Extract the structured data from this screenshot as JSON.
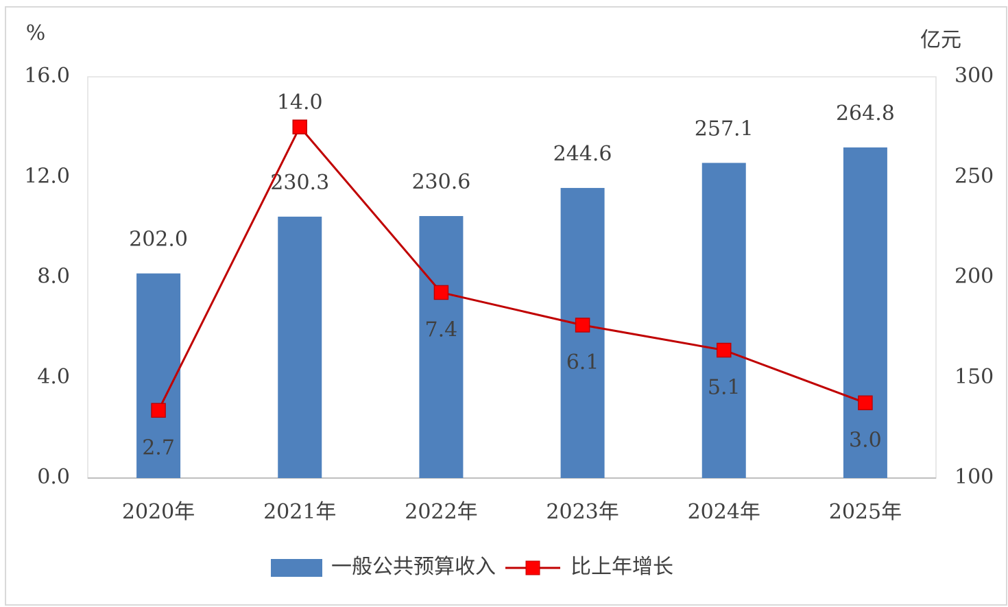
{
  "chart_data": {
    "type": "combo",
    "y_label": "%",
    "y2_label": "亿元",
    "categories": [
      "2020年",
      "2021年",
      "2022年",
      "2023年",
      "2024年",
      "2025年"
    ],
    "series": [
      {
        "name": "一般公共预算收入",
        "type": "bar",
        "axis": "y2",
        "color": "#4f81bd",
        "values": [
          202.0,
          230.3,
          230.6,
          244.6,
          257.1,
          264.8
        ],
        "value_labels": [
          "202.0",
          "230.3",
          "230.6",
          "244.6",
          "257.1",
          "264.8"
        ]
      },
      {
        "name": "比上年增长",
        "type": "line",
        "color": "#c00000",
        "marker_color": "#ff0000",
        "values": [
          2.7,
          14.0,
          7.4,
          6.1,
          5.1,
          3.0
        ],
        "value_labels": [
          "2.7",
          "14.0",
          "7.4",
          "6.1",
          "5.1",
          "3.0"
        ]
      }
    ],
    "ylim": [
      0,
      16
    ],
    "yticks": [
      {
        "value": 0,
        "label": "0.0"
      },
      {
        "value": 4,
        "label": "4.0"
      },
      {
        "value": 8,
        "label": "8.0"
      },
      {
        "value": 12,
        "label": "12.0"
      },
      {
        "value": 16,
        "label": "16.0"
      }
    ],
    "y2lim": [
      100,
      300
    ],
    "y2ticks": [
      100,
      150,
      200,
      250,
      300
    ],
    "grid": false,
    "legend": "bottom"
  }
}
